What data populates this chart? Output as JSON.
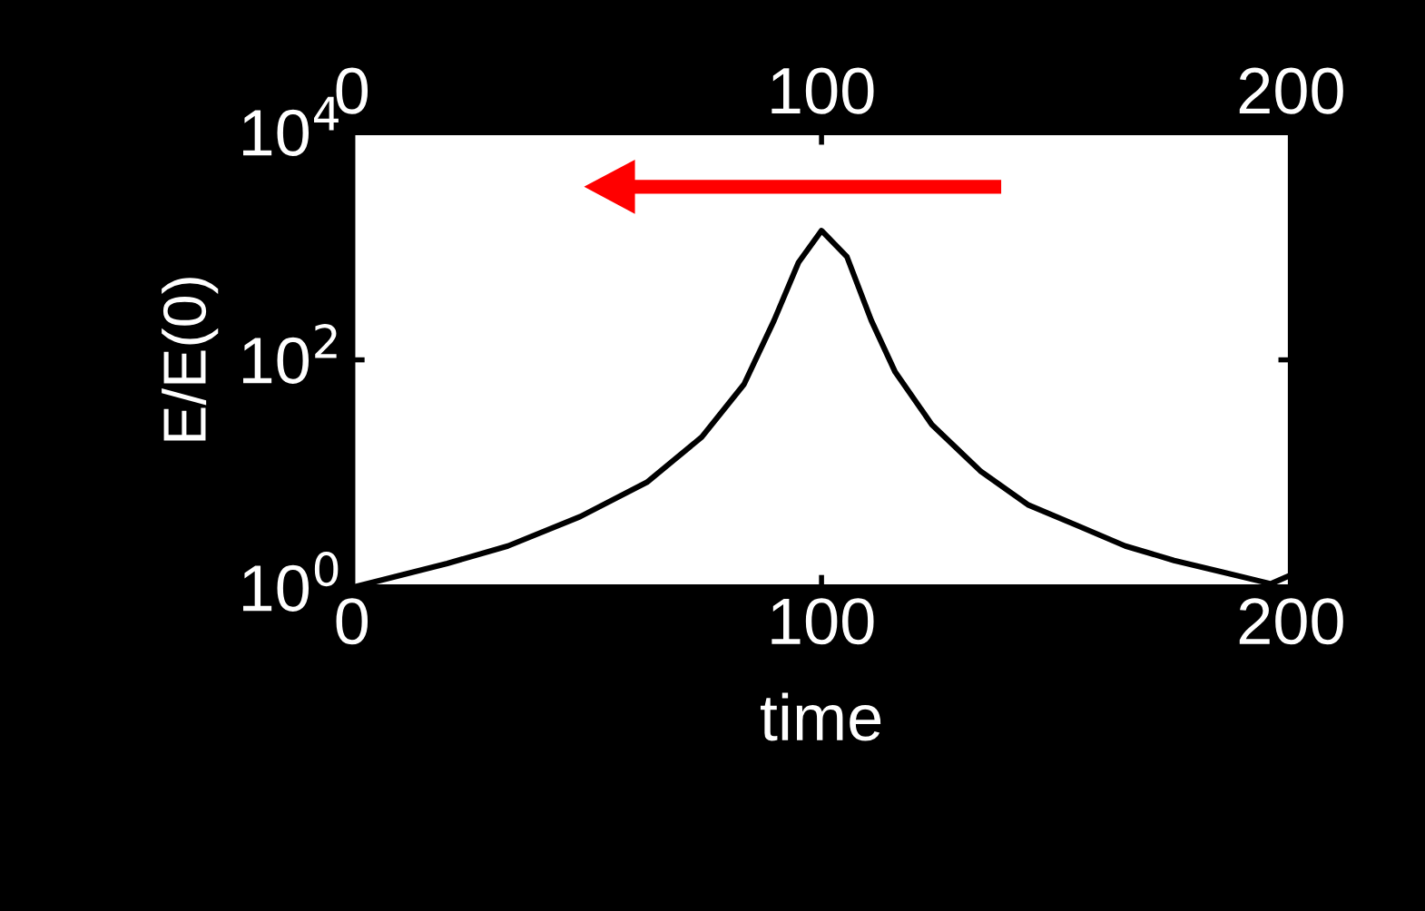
{
  "chart_data": {
    "type": "line",
    "xlabel": "time",
    "ylabel": "E/E(0)",
    "log": "y",
    "xlim": [
      0,
      200
    ],
    "xticks": [
      0,
      100,
      200
    ],
    "x2lim": [
      0,
      200
    ],
    "x2ticks": [
      0,
      100,
      200
    ],
    "ylim": [
      1,
      10000
    ],
    "yticks": [
      {
        "value": 1,
        "label": "10$^{0}$"
      },
      {
        "value": 100,
        "label": "10$^{2}$"
      },
      {
        "value": 10000,
        "label": "10$^{4}$"
      }
    ],
    "grid": false,
    "legend": false,
    "marker": "none",
    "line_style": "solid",
    "series": [
      {
        "color": "#000000",
        "x": [
          0,
          20.3,
          33.2,
          48.6,
          62.8,
          74.5,
          83.5,
          89.9,
          95.1,
          100,
          105.4,
          110.6,
          115.7,
          123.5,
          133.8,
          144.1,
          154.5,
          164.7,
          175.1,
          185.4,
          195.7,
          200
        ],
        "values": [
          1.0,
          1.63,
          2.32,
          4.2,
          8.4,
          21,
          61,
          222,
          716,
          1365,
          807,
          222,
          78,
          27,
          10.6,
          5.3,
          3.5,
          2.32,
          1.73,
          1.37,
          1.08,
          1.29
        ]
      }
    ]
  }
}
